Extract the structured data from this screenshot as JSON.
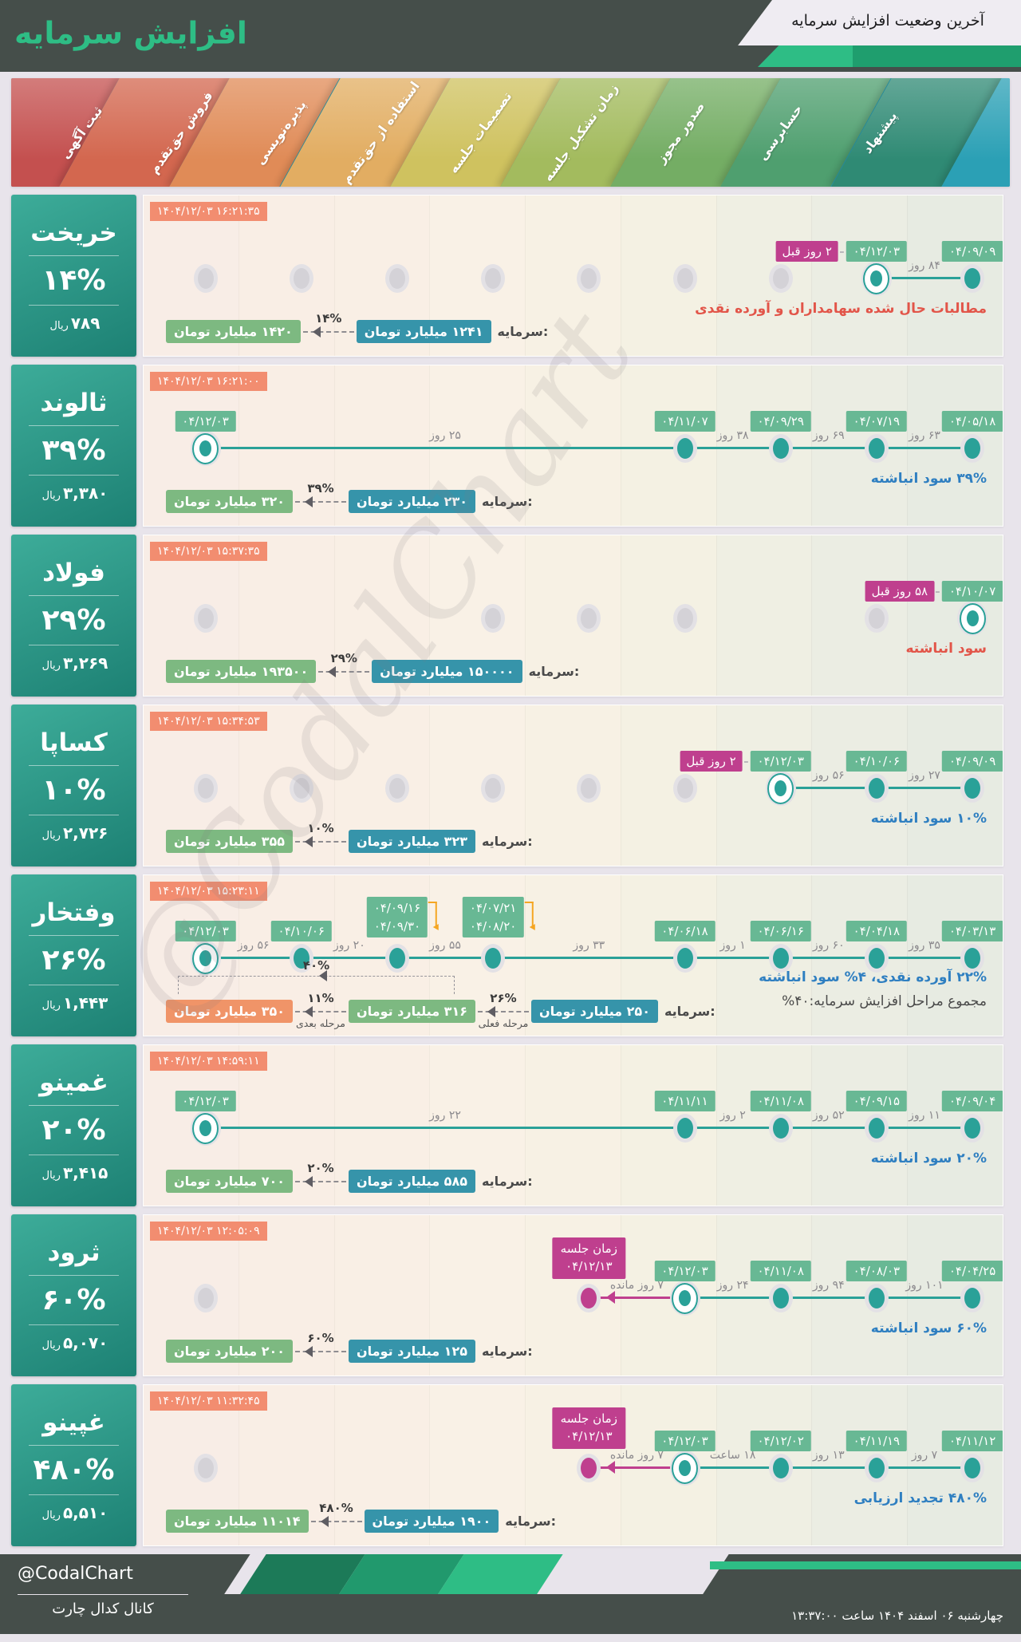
{
  "header": {
    "brand": "افزایش سرمایه",
    "title": "آخرین وضعیت افزایش سرمایه"
  },
  "stages": [
    {
      "label": "ثبت آگهی",
      "color": "#c4504f"
    },
    {
      "label": "فروش حق‌تقدم",
      "color": "#d3674f"
    },
    {
      "label": "پذیره‌نویسی",
      "color": "#e08b57"
    },
    {
      "label": "استفاده از حق‌تقدم",
      "color": "#e2ad62"
    },
    {
      "label": "تصمیمات جلسه",
      "color": "#cfc25f"
    },
    {
      "label": "زمان تشکیل جلسه",
      "color": "#a3bb5e"
    },
    {
      "label": "صدور مجوز",
      "color": "#74ad64"
    },
    {
      "label": "حسابرسی",
      "color": "#4f9f6f"
    },
    {
      "label": "پیشنهاد",
      "color": "#2f8a74"
    }
  ],
  "stage_extra_color": "#2ba0b5",
  "colors": {
    "accent_green": "#2ebd85",
    "dark_header": "#454e4a",
    "timeline_teal": "#2aa198",
    "magenta": "#bf3f8e",
    "timestamp_salmon": "#f28d70",
    "date_badge_green": "#68b894",
    "capital_from_teal": "#3694aa",
    "capital_to_green": "#7db981",
    "capital_next_orange": "#f09468",
    "note_red": "#e25549",
    "note_blue": "#2f7fc1"
  },
  "watermark": "@CodalChart",
  "rows": [
    {
      "company": "خریخت",
      "percent": "۱۴%",
      "price": "۷۸۹",
      "price_unit": "ریال",
      "timestamp": "۱۴۰۴/۱۲/۰۳ ۱۶:۲۱:۳۵",
      "note": {
        "text": "مطالبات حال شده سهامداران و آورده نقدی",
        "tone": "red"
      },
      "timeline": {
        "grays": [
          0,
          1,
          2,
          3,
          4,
          5,
          6
        ],
        "events": [
          {
            "col": 7,
            "date": "۰۴/۱۲/۰۳",
            "ringed": true,
            "tag": "۲ روز قبل"
          },
          {
            "col": 8,
            "date": "۰۴/۰۹/۰۹"
          }
        ],
        "spans": [
          {
            "a": 7,
            "b": 8,
            "label": "۸۴ روز"
          }
        ]
      },
      "capital": {
        "label": "سرمایه:",
        "from": "۱۲۴۱ میلیارد تومان",
        "pct": "۱۴%",
        "to": "۱۴۲۰ میلیارد تومان"
      }
    },
    {
      "company": "ثالوند",
      "percent": "۳۹%",
      "price": "۳,۳۸۰",
      "price_unit": "ریال",
      "timestamp": "۱۴۰۴/۱۲/۰۳ ۱۶:۲۱:۰۰",
      "note": {
        "text": "۳۹% سود انباشته",
        "tone": "blue"
      },
      "timeline": {
        "grays": [],
        "events": [
          {
            "col": 0,
            "date": "۰۴/۱۲/۰۳",
            "ringed": true
          },
          {
            "col": 5,
            "date": "۰۴/۱۱/۰۷"
          },
          {
            "col": 6,
            "date": "۰۴/۰۹/۲۹"
          },
          {
            "col": 7,
            "date": "۰۴/۰۷/۱۹"
          },
          {
            "col": 8,
            "date": "۰۴/۰۵/۱۸"
          }
        ],
        "spans": [
          {
            "a": 0,
            "b": 5,
            "label": "۲۵ روز"
          },
          {
            "a": 5,
            "b": 6,
            "label": "۳۸ روز"
          },
          {
            "a": 6,
            "b": 7,
            "label": "۶۹ روز"
          },
          {
            "a": 7,
            "b": 8,
            "label": "۶۳ روز"
          }
        ]
      },
      "capital": {
        "label": "سرمایه:",
        "from": "۲۳۰ میلیارد تومان",
        "pct": "۳۹%",
        "to": "۳۲۰ میلیارد تومان"
      }
    },
    {
      "company": "فولاد",
      "percent": "۲۹%",
      "price": "۳,۲۶۹",
      "price_unit": "ریال",
      "timestamp": "۱۴۰۴/۱۲/۰۳ ۱۵:۳۷:۳۵",
      "note": {
        "text": "سود انباشته",
        "tone": "red"
      },
      "timeline": {
        "grays": [
          0,
          3,
          4,
          5,
          7
        ],
        "events": [
          {
            "col": 8,
            "date": "۰۴/۱۰/۰۷",
            "ringed": true,
            "tag": "۵۸ روز قبل"
          }
        ],
        "spans": []
      },
      "capital": {
        "label": "سرمایه:",
        "from": "۱۵۰۰۰۰ میلیارد تومان",
        "pct": "۲۹%",
        "to": "۱۹۳۵۰۰ میلیارد تومان"
      }
    },
    {
      "company": "کساپا",
      "percent": "۱۰%",
      "price": "۲,۷۲۶",
      "price_unit": "ریال",
      "timestamp": "۱۴۰۴/۱۲/۰۳ ۱۵:۳۴:۵۳",
      "note": {
        "text": "۱۰% سود انباشته",
        "tone": "blue"
      },
      "timeline": {
        "grays": [
          0,
          1,
          2,
          3,
          4,
          5
        ],
        "events": [
          {
            "col": 6,
            "date": "۰۴/۱۲/۰۳",
            "ringed": true,
            "tag": "۲ روز قبل"
          },
          {
            "col": 7,
            "date": "۰۴/۱۰/۰۶"
          },
          {
            "col": 8,
            "date": "۰۴/۰۹/۰۹"
          }
        ],
        "spans": [
          {
            "a": 6,
            "b": 7,
            "label": "۵۶ روز"
          },
          {
            "a": 7,
            "b": 8,
            "label": "۲۷ روز"
          }
        ]
      },
      "capital": {
        "label": "سرمایه:",
        "from": "۳۲۳ میلیارد تومان",
        "pct": "۱۰%",
        "to": "۳۵۵ میلیارد تومان"
      }
    },
    {
      "company": "وفتخار",
      "percent": "۲۶%",
      "price": "۱,۴۴۳",
      "price_unit": "ریال",
      "timestamp": "۱۴۰۴/۱۲/۰۳ ۱۵:۲۳:۱۱",
      "note": {
        "text": "۲۲% آورده نقدی، ۴% سود انباشته",
        "tone": "blue"
      },
      "note2": {
        "text": "مجموع مراحل افزایش سرمایه:۴۰%",
        "tone": "dark"
      },
      "timeline": {
        "grays": [],
        "events": [
          {
            "col": 0,
            "date": "۰۴/۱۲/۰۳",
            "ringed": true
          },
          {
            "col": 1,
            "date": "۰۴/۱۰/۰۶"
          },
          {
            "col": 2,
            "dates": [
              "۰۴/۰۹/۱۶",
              "۰۴/۰۹/۳۰"
            ],
            "bracket": true
          },
          {
            "col": 3,
            "dates": [
              "۰۴/۰۷/۲۱",
              "۰۴/۰۸/۲۰"
            ],
            "bracket": true
          },
          {
            "col": 5,
            "date": "۰۴/۰۶/۱۸"
          },
          {
            "col": 6,
            "date": "۰۴/۰۶/۱۶"
          },
          {
            "col": 7,
            "date": "۰۴/۰۴/۱۸"
          },
          {
            "col": 8,
            "date": "۰۴/۰۳/۱۳"
          }
        ],
        "spans": [
          {
            "a": 0,
            "b": 1,
            "label": "۵۶ روز"
          },
          {
            "a": 1,
            "b": 2,
            "label": "۲۰ روز"
          },
          {
            "a": 2,
            "b": 3,
            "label": "۵۵ روز"
          },
          {
            "a": 3,
            "b": 5,
            "label": "۳۳ روز"
          },
          {
            "a": 5,
            "b": 6,
            "label": "۱ روز"
          },
          {
            "a": 6,
            "b": 7,
            "label": "۶۰ روز"
          },
          {
            "a": 7,
            "b": 8,
            "label": "۳۵ روز"
          }
        ]
      },
      "capital": {
        "label": "سرمایه:",
        "from": "۲۵۰ میلیارد تومان",
        "pct": "۲۶%",
        "to": "۳۱۶ میلیارد تومان",
        "pct_next": "۱۱%",
        "next": "۳۵۰ میلیارد تومان",
        "stage_current_label": "مرحله فعلی",
        "stage_next_label": "مرحله بعدی",
        "total": "۴۰%"
      }
    },
    {
      "company": "غمینو",
      "percent": "۲۰%",
      "price": "۳,۴۱۵",
      "price_unit": "ریال",
      "timestamp": "۱۴۰۴/۱۲/۰۳ ۱۴:۵۹:۱۱",
      "note": {
        "text": "۲۰% سود انباشته",
        "tone": "blue"
      },
      "timeline": {
        "grays": [],
        "events": [
          {
            "col": 0,
            "date": "۰۴/۱۲/۰۳",
            "ringed": true
          },
          {
            "col": 5,
            "date": "۰۴/۱۱/۱۱"
          },
          {
            "col": 6,
            "date": "۰۴/۱۱/۰۸"
          },
          {
            "col": 7,
            "date": "۰۴/۰۹/۱۵"
          },
          {
            "col": 8,
            "date": "۰۴/۰۹/۰۴"
          }
        ],
        "spans": [
          {
            "a": 0,
            "b": 5,
            "label": "۲۲ روز"
          },
          {
            "a": 5,
            "b": 6,
            "label": "۲ روز"
          },
          {
            "a": 6,
            "b": 7,
            "label": "۵۲ روز"
          },
          {
            "a": 7,
            "b": 8,
            "label": "۱۱ روز"
          }
        ]
      },
      "capital": {
        "label": "سرمایه:",
        "from": "۵۸۵ میلیارد تومان",
        "pct": "۲۰%",
        "to": "۷۰۰ میلیارد تومان"
      }
    },
    {
      "company": "ثرود",
      "percent": "۶۰%",
      "price": "۵,۰۷۰",
      "price_unit": "ریال",
      "timestamp": "۱۴۰۴/۱۲/۰۳ ۱۲:۰۵:۰۹",
      "note": {
        "text": "۶۰% سود انباشته",
        "tone": "blue"
      },
      "timeline": {
        "grays": [
          0
        ],
        "meeting": {
          "col": 4,
          "line1": "زمان جلسه",
          "line2": "۰۴/۱۲/۱۳",
          "remain": "۷ روز مانده"
        },
        "events": [
          {
            "col": 5,
            "date": "۰۴/۱۲/۰۳",
            "ringed": true
          },
          {
            "col": 6,
            "date": "۰۴/۱۱/۰۸"
          },
          {
            "col": 7,
            "date": "۰۴/۰۸/۰۳"
          },
          {
            "col": 8,
            "date": "۰۴/۰۴/۲۵"
          }
        ],
        "spans": [
          {
            "a": 5,
            "b": 6,
            "label": "۲۴ روز"
          },
          {
            "a": 6,
            "b": 7,
            "label": "۹۴ روز"
          },
          {
            "a": 7,
            "b": 8,
            "label": "۱۰۱ روز"
          }
        ]
      },
      "capital": {
        "label": "سرمایه:",
        "from": "۱۲۵ میلیارد تومان",
        "pct": "۶۰%",
        "to": "۲۰۰ میلیارد تومان"
      }
    },
    {
      "company": "غپینو",
      "percent": "۴۸۰%",
      "price": "۵,۵۱۰",
      "price_unit": "ریال",
      "timestamp": "۱۴۰۴/۱۲/۰۳ ۱۱:۳۲:۴۵",
      "note": {
        "text": "۴۸۰% تجدید ارزیابی",
        "tone": "blue"
      },
      "timeline": {
        "grays": [
          0
        ],
        "meeting": {
          "col": 4,
          "line1": "زمان جلسه",
          "line2": "۰۴/۱۲/۱۳",
          "remain": "۷ روز مانده"
        },
        "events": [
          {
            "col": 5,
            "date": "۰۴/۱۲/۰۳",
            "ringed": true
          },
          {
            "col": 6,
            "date": "۰۴/۱۲/۰۲"
          },
          {
            "col": 7,
            "date": "۰۴/۱۱/۱۹"
          },
          {
            "col": 8,
            "date": "۰۴/۱۱/۱۲"
          }
        ],
        "spans": [
          {
            "a": 5,
            "b": 6,
            "label": "۱۸ ساعت"
          },
          {
            "a": 6,
            "b": 7,
            "label": "۱۳ روز"
          },
          {
            "a": 7,
            "b": 8,
            "label": "۷ روز"
          }
        ]
      },
      "capital": {
        "label": "سرمایه:",
        "from": "۱۹۰۰ میلیارد تومان",
        "pct": "۴۸۰%",
        "to": "۱۱۰۱۴ میلیارد تومان"
      }
    }
  ],
  "footer": {
    "handle": "@CodalChart",
    "caption": "کانال کدال چارت",
    "datetime": "چهارشنبه ۰۶ اسفند ۱۴۰۴ ساعت ۱۳:۳۷:۰۰"
  },
  "chart_data": {
    "type": "table",
    "title": "آخرین وضعیت افزایش سرمایه",
    "columns": [
      "company",
      "increase_percent",
      "price_rial",
      "capital_before_billion_toman",
      "capital_after_billion_toman",
      "note"
    ],
    "rows": [
      [
        "خریخت",
        14,
        789,
        1241,
        1420,
        "مطالبات حال شده سهامداران و آورده نقدی"
      ],
      [
        "ثالوند",
        39,
        3380,
        230,
        320,
        "۳۹% سود انباشته"
      ],
      [
        "فولاد",
        29,
        3269,
        150000,
        193500,
        "سود انباشته"
      ],
      [
        "کساپا",
        10,
        2726,
        323,
        355,
        "۱۰% سود انباشته"
      ],
      [
        "وفتخار",
        26,
        1443,
        250,
        316,
        "۲۲% آورده نقدی، ۴% سود انباشته — مجموع مراحل ۴۰% — مرحله بعدی ۳۵۰"
      ],
      [
        "غمینو",
        20,
        3415,
        585,
        700,
        "۲۰% سود انباشته"
      ],
      [
        "ثرود",
        60,
        5070,
        125,
        200,
        "۶۰% سود انباشته — زمان جلسه 04/12/13"
      ],
      [
        "غپینو",
        480,
        5510,
        1900,
        11014,
        "۴۸۰% تجدید ارزیابی — زمان جلسه 04/12/13"
      ]
    ],
    "stage_events": {
      "خریخت": [
        {
          "stage": "حسابرسی",
          "date": "04/12/03"
        },
        {
          "stage": "پیشنهاد",
          "date": "04/09/09"
        }
      ],
      "ثالوند": [
        {
          "stage": "ثبت آگهی",
          "date": "04/12/03"
        },
        {
          "stage": "زمان تشکیل جلسه",
          "date": "04/11/07"
        },
        {
          "stage": "صدور مجوز",
          "date": "04/09/29"
        },
        {
          "stage": "حسابرسی",
          "date": "04/07/19"
        },
        {
          "stage": "پیشنهاد",
          "date": "04/05/18"
        }
      ],
      "فولاد": [
        {
          "stage": "پیشنهاد",
          "date": "04/10/07"
        }
      ],
      "کساپا": [
        {
          "stage": "صدور مجوز",
          "date": "04/12/03"
        },
        {
          "stage": "حسابرسی",
          "date": "04/10/06"
        },
        {
          "stage": "پیشنهاد",
          "date": "04/09/09"
        }
      ],
      "وفتخار": [
        {
          "stage": "ثبت آگهی",
          "date": "04/12/03"
        },
        {
          "stage": "فروش حق‌تقدم",
          "date": "04/10/06"
        },
        {
          "stage": "پذیره‌نویسی",
          "date": "04/09/16-04/09/30"
        },
        {
          "stage": "استفاده از حق‌تقدم",
          "date": "04/07/21-04/08/20"
        },
        {
          "stage": "زمان تشکیل جلسه",
          "date": "04/06/18"
        },
        {
          "stage": "صدور مجوز",
          "date": "04/06/16"
        },
        {
          "stage": "حسابرسی",
          "date": "04/04/18"
        },
        {
          "stage": "پیشنهاد",
          "date": "04/03/13"
        }
      ],
      "غمینو": [
        {
          "stage": "ثبت آگهی",
          "date": "04/12/03"
        },
        {
          "stage": "زمان تشکیل جلسه",
          "date": "04/11/11"
        },
        {
          "stage": "صدور مجوز",
          "date": "04/11/08"
        },
        {
          "stage": "حسابرسی",
          "date": "04/09/15"
        },
        {
          "stage": "پیشنهاد",
          "date": "04/09/04"
        }
      ],
      "ثرود": [
        {
          "stage": "تصمیمات جلسه",
          "date": "04/12/13"
        },
        {
          "stage": "زمان تشکیل جلسه",
          "date": "04/12/03"
        },
        {
          "stage": "صدور مجوز",
          "date": "04/11/08"
        },
        {
          "stage": "حسابرسی",
          "date": "04/08/03"
        },
        {
          "stage": "پیشنهاد",
          "date": "04/04/25"
        }
      ],
      "غپینو": [
        {
          "stage": "تصمیمات جلسه",
          "date": "04/12/13"
        },
        {
          "stage": "زمان تشکیل جلسه",
          "date": "04/12/03"
        },
        {
          "stage": "صدور مجوز",
          "date": "04/12/02"
        },
        {
          "stage": "حسابرسی",
          "date": "04/11/19"
        },
        {
          "stage": "پیشنهاد",
          "date": "04/11/12"
        }
      ]
    }
  }
}
